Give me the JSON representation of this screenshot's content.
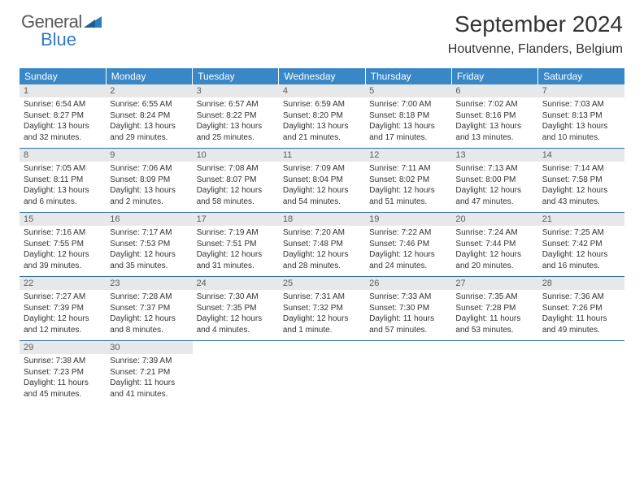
{
  "brand": {
    "line1": "General",
    "line2": "Blue"
  },
  "title": "September 2024",
  "location": "Houtvenne, Flanders, Belgium",
  "colors": {
    "header_bg": "#3a87c7",
    "header_text": "#ffffff",
    "row_divider": "#2c6ea8",
    "daynum_bg": "#e7e8e9",
    "daynum_text": "#5c5c5c",
    "body_text": "#333333",
    "brand_gray": "#5a5a5a",
    "brand_blue": "#2f7bbf",
    "background": "#ffffff"
  },
  "typography": {
    "title_fontsize": 28,
    "location_fontsize": 16,
    "weekday_fontsize": 12,
    "daynum_fontsize": 11,
    "cell_fontsize": 10,
    "font_family": "Arial"
  },
  "weekdays": [
    "Sunday",
    "Monday",
    "Tuesday",
    "Wednesday",
    "Thursday",
    "Friday",
    "Saturday"
  ],
  "days": [
    {
      "n": 1,
      "sunrise": "6:54 AM",
      "sunset": "8:27 PM",
      "daylight": "13 hours and 32 minutes."
    },
    {
      "n": 2,
      "sunrise": "6:55 AM",
      "sunset": "8:24 PM",
      "daylight": "13 hours and 29 minutes."
    },
    {
      "n": 3,
      "sunrise": "6:57 AM",
      "sunset": "8:22 PM",
      "daylight": "13 hours and 25 minutes."
    },
    {
      "n": 4,
      "sunrise": "6:59 AM",
      "sunset": "8:20 PM",
      "daylight": "13 hours and 21 minutes."
    },
    {
      "n": 5,
      "sunrise": "7:00 AM",
      "sunset": "8:18 PM",
      "daylight": "13 hours and 17 minutes."
    },
    {
      "n": 6,
      "sunrise": "7:02 AM",
      "sunset": "8:16 PM",
      "daylight": "13 hours and 13 minutes."
    },
    {
      "n": 7,
      "sunrise": "7:03 AM",
      "sunset": "8:13 PM",
      "daylight": "13 hours and 10 minutes."
    },
    {
      "n": 8,
      "sunrise": "7:05 AM",
      "sunset": "8:11 PM",
      "daylight": "13 hours and 6 minutes."
    },
    {
      "n": 9,
      "sunrise": "7:06 AM",
      "sunset": "8:09 PM",
      "daylight": "13 hours and 2 minutes."
    },
    {
      "n": 10,
      "sunrise": "7:08 AM",
      "sunset": "8:07 PM",
      "daylight": "12 hours and 58 minutes."
    },
    {
      "n": 11,
      "sunrise": "7:09 AM",
      "sunset": "8:04 PM",
      "daylight": "12 hours and 54 minutes."
    },
    {
      "n": 12,
      "sunrise": "7:11 AM",
      "sunset": "8:02 PM",
      "daylight": "12 hours and 51 minutes."
    },
    {
      "n": 13,
      "sunrise": "7:13 AM",
      "sunset": "8:00 PM",
      "daylight": "12 hours and 47 minutes."
    },
    {
      "n": 14,
      "sunrise": "7:14 AM",
      "sunset": "7:58 PM",
      "daylight": "12 hours and 43 minutes."
    },
    {
      "n": 15,
      "sunrise": "7:16 AM",
      "sunset": "7:55 PM",
      "daylight": "12 hours and 39 minutes."
    },
    {
      "n": 16,
      "sunrise": "7:17 AM",
      "sunset": "7:53 PM",
      "daylight": "12 hours and 35 minutes."
    },
    {
      "n": 17,
      "sunrise": "7:19 AM",
      "sunset": "7:51 PM",
      "daylight": "12 hours and 31 minutes."
    },
    {
      "n": 18,
      "sunrise": "7:20 AM",
      "sunset": "7:48 PM",
      "daylight": "12 hours and 28 minutes."
    },
    {
      "n": 19,
      "sunrise": "7:22 AM",
      "sunset": "7:46 PM",
      "daylight": "12 hours and 24 minutes."
    },
    {
      "n": 20,
      "sunrise": "7:24 AM",
      "sunset": "7:44 PM",
      "daylight": "12 hours and 20 minutes."
    },
    {
      "n": 21,
      "sunrise": "7:25 AM",
      "sunset": "7:42 PM",
      "daylight": "12 hours and 16 minutes."
    },
    {
      "n": 22,
      "sunrise": "7:27 AM",
      "sunset": "7:39 PM",
      "daylight": "12 hours and 12 minutes."
    },
    {
      "n": 23,
      "sunrise": "7:28 AM",
      "sunset": "7:37 PM",
      "daylight": "12 hours and 8 minutes."
    },
    {
      "n": 24,
      "sunrise": "7:30 AM",
      "sunset": "7:35 PM",
      "daylight": "12 hours and 4 minutes."
    },
    {
      "n": 25,
      "sunrise": "7:31 AM",
      "sunset": "7:32 PM",
      "daylight": "12 hours and 1 minute."
    },
    {
      "n": 26,
      "sunrise": "7:33 AM",
      "sunset": "7:30 PM",
      "daylight": "11 hours and 57 minutes."
    },
    {
      "n": 27,
      "sunrise": "7:35 AM",
      "sunset": "7:28 PM",
      "daylight": "11 hours and 53 minutes."
    },
    {
      "n": 28,
      "sunrise": "7:36 AM",
      "sunset": "7:26 PM",
      "daylight": "11 hours and 49 minutes."
    },
    {
      "n": 29,
      "sunrise": "7:38 AM",
      "sunset": "7:23 PM",
      "daylight": "11 hours and 45 minutes."
    },
    {
      "n": 30,
      "sunrise": "7:39 AM",
      "sunset": "7:21 PM",
      "daylight": "11 hours and 41 minutes."
    }
  ],
  "labels": {
    "sunrise": "Sunrise:",
    "sunset": "Sunset:",
    "daylight": "Daylight:"
  },
  "layout": {
    "first_weekday_index": 0,
    "total_columns": 7,
    "total_rows": 5
  }
}
